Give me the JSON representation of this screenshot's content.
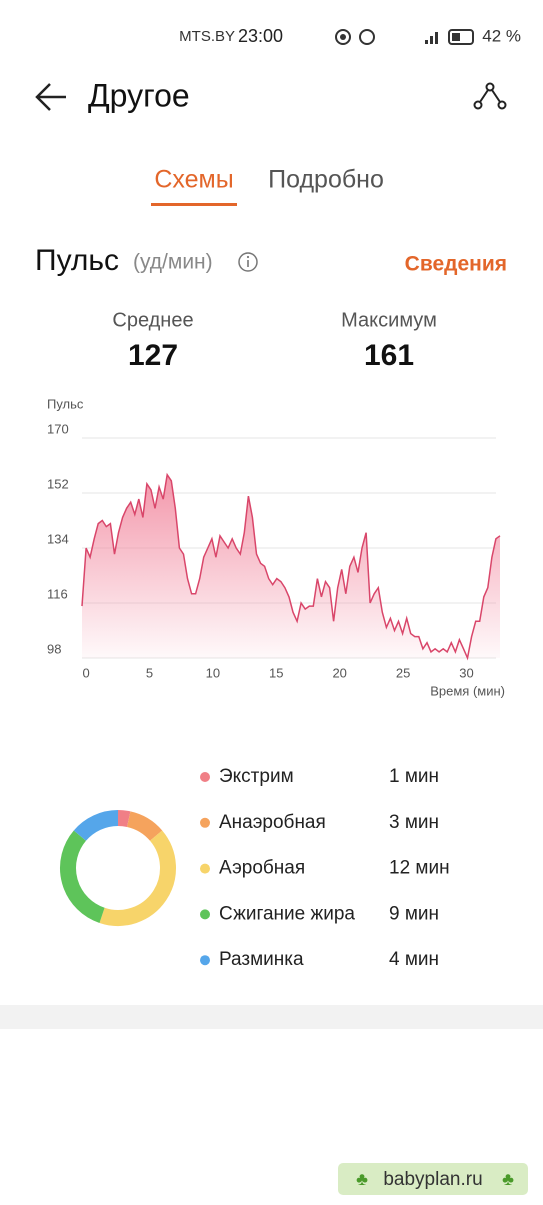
{
  "status_bar": {
    "carrier": "MTS.BY",
    "time": "23:00",
    "battery": "42 %"
  },
  "header": {
    "title": "Другое"
  },
  "tabs": [
    "Схемы",
    "Подробно"
  ],
  "section": {
    "title": "Пульс",
    "unit": "(уд/мин)",
    "link": "Сведения"
  },
  "stats": [
    {
      "label": "Среднее",
      "value": "127"
    },
    {
      "label": "Максимум",
      "value": "161"
    }
  ],
  "chart_data": [
    {
      "type": "line",
      "y_label": "Пульс",
      "x_label": "Время (мин)",
      "color": "#d9466a",
      "fill": "#f59aae",
      "x": [
        -0.32,
        0,
        0.32,
        0.64,
        0.96,
        1.28,
        1.6,
        1.92,
        2.24,
        2.56,
        2.88,
        3.2,
        3.52,
        3.84,
        4.16,
        4.48,
        4.8,
        5.12,
        5.44,
        5.76,
        6.08,
        6.4,
        6.72,
        7.04,
        7.36,
        7.68,
        8,
        8.32,
        8.64,
        8.96,
        9.28,
        9.6,
        9.92,
        10.24,
        10.56,
        10.88,
        11.2,
        11.52,
        11.84,
        12.16,
        12.48,
        12.8,
        13.12,
        13.44,
        13.76,
        14.08,
        14.4,
        14.72,
        15.04,
        15.36,
        15.68,
        16,
        16.32,
        16.64,
        16.96,
        17.28,
        17.6,
        17.92,
        18.24,
        18.56,
        18.88,
        19.2,
        19.52,
        19.84,
        20.16,
        20.48,
        20.8,
        21.12,
        21.44,
        21.76,
        22.08,
        22.4,
        22.72,
        23.04,
        23.36,
        23.68,
        24,
        24.32,
        24.64,
        24.96,
        25.28,
        25.6,
        25.92,
        26.24,
        26.56,
        26.88,
        27.2,
        27.52,
        27.84,
        28.16,
        28.48,
        28.8,
        29.12,
        29.44,
        29.76,
        30.08,
        30.4,
        30.72,
        31.04,
        31.36,
        31.68,
        32,
        32.32,
        32.64
      ],
      "values": [
        115,
        134,
        131,
        137,
        142,
        143,
        141,
        142,
        132,
        139,
        144,
        147,
        149,
        145,
        150,
        144,
        155,
        153,
        147,
        154,
        150,
        158,
        156,
        147,
        134,
        132,
        124,
        119,
        119,
        124,
        131,
        134,
        137,
        131,
        138,
        136,
        134,
        137,
        134,
        132,
        139,
        151,
        144,
        132,
        129,
        128,
        124,
        122,
        124,
        123,
        121,
        118,
        113,
        110,
        116,
        114,
        115,
        115,
        124,
        118,
        123,
        121,
        110,
        121,
        127,
        119,
        128,
        131,
        126,
        134,
        139,
        116,
        119,
        121,
        113,
        108,
        111,
        107,
        110,
        106,
        111,
        106,
        105,
        105,
        101,
        103,
        100,
        101,
        100,
        101,
        100,
        103,
        100,
        104,
        101,
        98,
        105,
        110,
        110,
        118,
        121,
        131,
        137,
        138
      ],
      "xlim": [
        -0.32,
        32.64
      ],
      "ylim": [
        98,
        170
      ],
      "xticks": [
        0,
        5,
        10,
        15,
        20,
        25,
        30
      ],
      "yticks": [
        98,
        116,
        134,
        152,
        170
      ],
      "grid": true
    },
    {
      "type": "pie",
      "categories": [
        "Экстрим",
        "Анаэробная",
        "Аэробная",
        "Сжигание жира",
        "Разминка"
      ],
      "values": [
        1,
        3,
        12,
        9,
        4
      ],
      "value_labels": [
        "1 мин",
        "3 мин",
        "12 мин",
        "9 мин",
        "4 мин"
      ],
      "colors": [
        "#f07f86",
        "#f5a35d",
        "#f7d46a",
        "#5ec45a",
        "#55a6ea"
      ]
    }
  ],
  "watermark": "babyplan.ru"
}
